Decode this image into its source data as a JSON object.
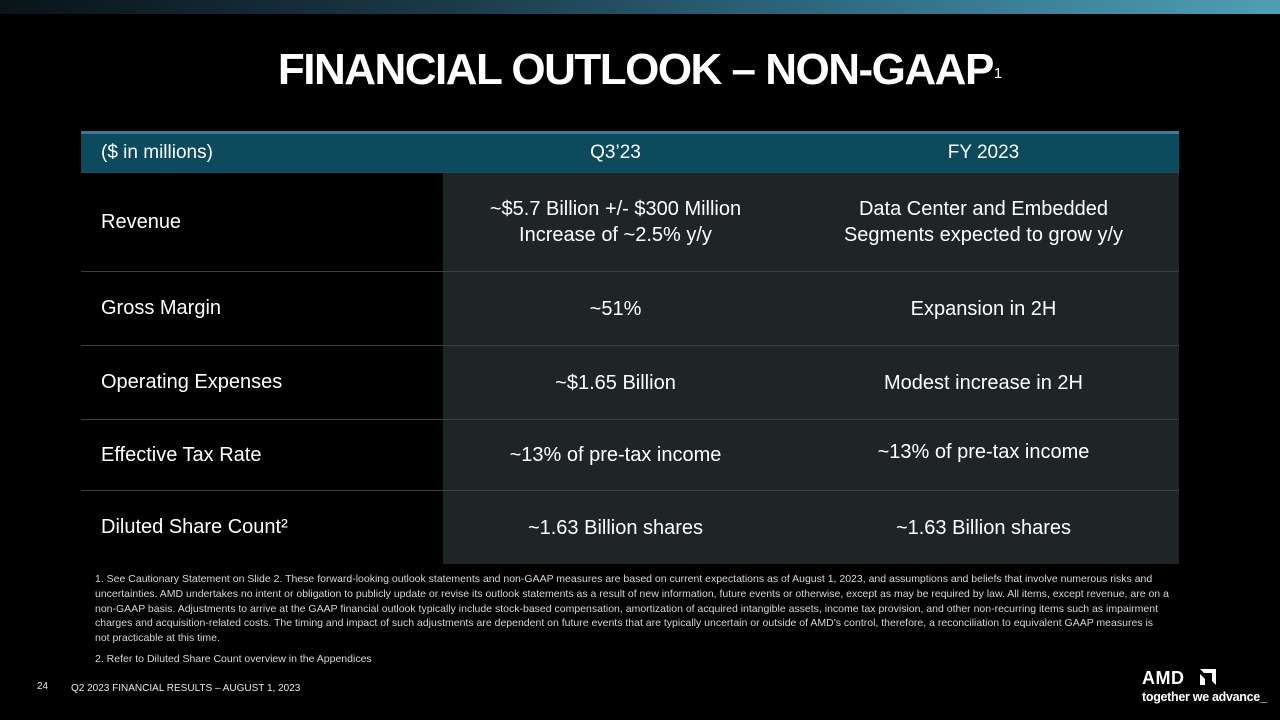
{
  "slide": {
    "title": "FINANCIAL OUTLOOK – NON-GAAP",
    "title_superscript": "1",
    "page_number": "24",
    "footer_text": "Q2 2023 FINANCIAL RESULTS – AUGUST 1, 2023"
  },
  "table": {
    "header": {
      "col1": "($ in millions)",
      "col2": "Q3’23",
      "col3": "FY 2023"
    },
    "rows": [
      {
        "label": "Revenue",
        "q3_line1": "~$5.7 Billion +/- $300 Million",
        "q3_line2": "Increase of ~2.5% y/y",
        "fy_line1": "Data Center and Embedded",
        "fy_line2": "Segments expected to grow y/y"
      },
      {
        "label": "Gross Margin",
        "q3": "~51%",
        "fy": "Expansion in 2H"
      },
      {
        "label": "Operating Expenses",
        "q3": "~$1.65 Billion",
        "fy": "Modest increase in 2H"
      },
      {
        "label": "Effective Tax Rate",
        "q3": "~13% of pre-tax income",
        "fy": "~13% of pre-tax income"
      },
      {
        "label": "Diluted Share Count²",
        "q3": "~1.63 Billion shares",
        "fy": "~1.63 Billion shares"
      }
    ]
  },
  "footnotes": {
    "note1": "1.  See Cautionary Statement on Slide 2. These forward-looking outlook statements and non-GAAP measures are based on current expectations as of August 1, 2023, and assumptions and beliefs that involve numerous risks and uncertainties. AMD undertakes no intent or obligation to publicly update or revise its outlook statements as a result of new information, future events or otherwise, except as may be required by law. All items, except revenue, are on a non-GAAP basis. Adjustments to arrive at the GAAP financial outlook typically include stock-based compensation, amortization of acquired intangible assets, income tax provision, and other non-recurring items such as impairment charges and acquisition-related costs. The timing and impact of such adjustments are dependent on future events that are typically uncertain or outside of AMD's control, therefore, a reconciliation to equivalent GAAP measures is not practicable at this time.",
    "note2": "2.  Refer to Diluted Share Count overview in the Appendices"
  },
  "brand": {
    "logo_text": "AMD",
    "logo_icon": "amd-arrow-icon",
    "tagline": "together we advance_"
  }
}
